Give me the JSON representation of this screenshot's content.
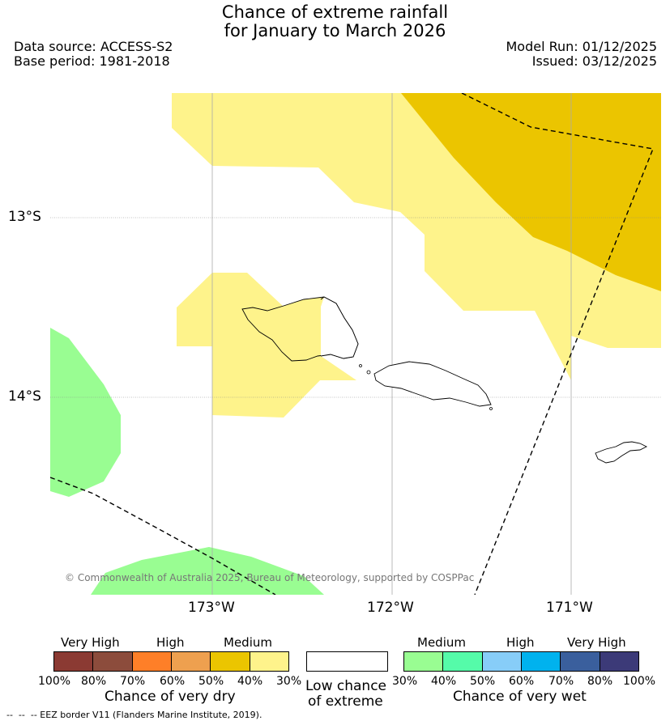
{
  "title": {
    "line1": "Chance of extreme rainfall",
    "line2": "for January to March 2026"
  },
  "meta": {
    "data_source": "Data source: ACCESS-S2",
    "base_period": "Base period: 1981-2018",
    "model_run": "Model Run: 01/12/2025",
    "issued": "Issued: 03/12/2025"
  },
  "map": {
    "lat_labels": [
      "13°S",
      "14°S"
    ],
    "lon_labels": [
      "173°W",
      "172°W",
      "171°W"
    ],
    "copyright": "© Commonwealth of Australia 2025, Bureau of Meteorology, supported by COSPPac"
  },
  "legend": {
    "dry": {
      "headers": [
        "Very High",
        "High",
        "Medium"
      ],
      "ticks": [
        "100%",
        "80%",
        "70%",
        "60%",
        "50%",
        "40%",
        "30%"
      ],
      "caption": "Chance of very dry",
      "colors": [
        "#8b3a33",
        "#8c4c3c",
        "#fe7f28",
        "#eea04f",
        "#ebc500",
        "#fef38b"
      ]
    },
    "low": {
      "line1": "Low chance",
      "line2": "of extreme"
    },
    "wet": {
      "headers": [
        "Medium",
        "High",
        "Very High"
      ],
      "ticks": [
        "30%",
        "40%",
        "50%",
        "60%",
        "70%",
        "80%",
        "100%"
      ],
      "caption": "Chance of very wet",
      "colors": [
        "#99fd92",
        "#55fba9",
        "#87cdf8",
        "#00b2ee",
        "#3a5f9d",
        "#3c3a78"
      ]
    }
  },
  "footer": {
    "eez": "--  --  -- EEZ border V11 (Flanders Marine Institute, 2019)."
  }
}
